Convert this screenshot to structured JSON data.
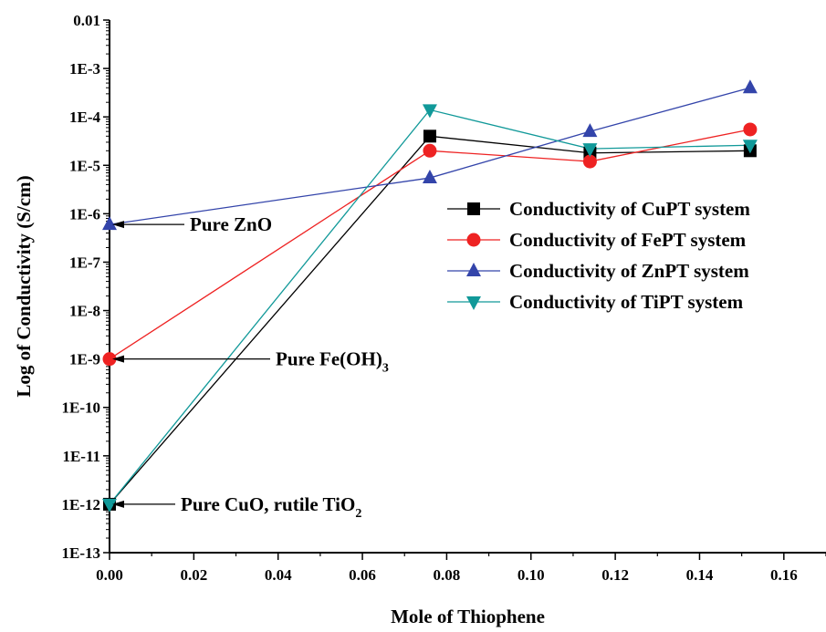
{
  "chart_data": {
    "type": "line",
    "title": "",
    "xlabel": "Mole of Thiophene",
    "ylabel": "Log of Conductivity (S/cm)",
    "xlim": [
      0,
      0.17
    ],
    "ylim_exponent": [
      -13,
      -2
    ],
    "y_scale": "log",
    "x_ticks": [
      "0.00",
      "0.02",
      "0.04",
      "0.06",
      "0.08",
      "0.10",
      "0.12",
      "0.14",
      "0.16"
    ],
    "x_tick_values": [
      0,
      0.02,
      0.04,
      0.06,
      0.08,
      0.1,
      0.12,
      0.14,
      0.16
    ],
    "y_ticks": [
      "0.01",
      "1E-3",
      "1E-4",
      "1E-5",
      "1E-6",
      "1E-7",
      "1E-8",
      "1E-9",
      "1E-10",
      "1E-11",
      "1E-12",
      "1E-13"
    ],
    "y_tick_values": [
      0.01,
      0.001,
      0.0001,
      1e-05,
      1e-06,
      1e-07,
      1e-08,
      1e-09,
      1e-10,
      1e-11,
      1e-12,
      1e-13
    ],
    "grid": false,
    "legend_position": "right",
    "series": [
      {
        "name": "Conductivity of CuPT system",
        "color": "#000000",
        "marker": "square",
        "x": [
          0,
          0.076,
          0.114,
          0.152
        ],
        "y": [
          1e-12,
          4e-05,
          1.8e-05,
          2e-05
        ]
      },
      {
        "name": "Conductivity of FePT system",
        "color": "#ee2222",
        "marker": "circle",
        "x": [
          0,
          0.076,
          0.114,
          0.152
        ],
        "y": [
          1e-09,
          2e-05,
          1.2e-05,
          5.5e-05
        ]
      },
      {
        "name": "Conductivity of ZnPT system",
        "color": "#3344aa",
        "marker": "triangle-up",
        "x": [
          0,
          0.076,
          0.114,
          0.152
        ],
        "y": [
          6e-07,
          5.5e-06,
          5e-05,
          0.0004
        ]
      },
      {
        "name": "Conductivity of TiPT system",
        "color": "#119999",
        "marker": "triangle-down",
        "x": [
          0,
          0.076,
          0.114,
          0.152
        ],
        "y": [
          1e-12,
          0.00014,
          2.2e-05,
          2.6e-05
        ]
      }
    ],
    "annotations": [
      {
        "text": "Pure ZnO",
        "sub": "",
        "x": 0,
        "y": 6e-07
      },
      {
        "text": "Pure Fe(OH)",
        "sub": "3",
        "x": 0,
        "y": 1e-09
      },
      {
        "text": "Pure CuO, rutile TiO",
        "sub": "2",
        "x": 0,
        "y": 1e-12
      }
    ]
  }
}
